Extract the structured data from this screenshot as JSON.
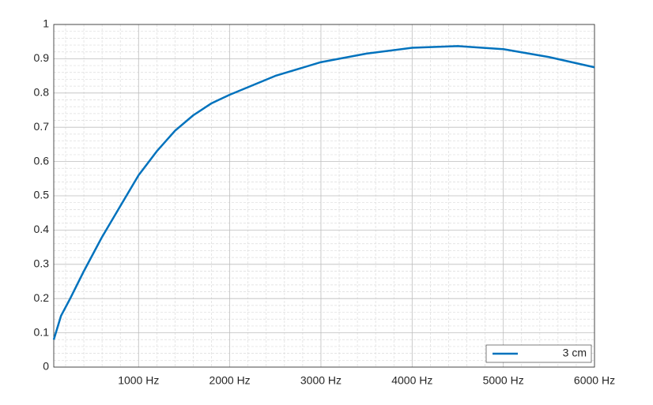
{
  "chart_data": {
    "type": "line",
    "x": [
      70,
      150,
      250,
      400,
      600,
      800,
      1000,
      1200,
      1400,
      1600,
      1800,
      2000,
      2500,
      3000,
      3500,
      4000,
      4500,
      5000,
      5500,
      6000
    ],
    "series": [
      {
        "name": "3 cm",
        "color": "#0072bd",
        "values": [
          0.08,
          0.15,
          0.2,
          0.28,
          0.38,
          0.47,
          0.56,
          0.63,
          0.69,
          0.735,
          0.77,
          0.795,
          0.85,
          0.89,
          0.915,
          0.932,
          0.937,
          0.928,
          0.905,
          0.875
        ]
      }
    ],
    "xlim": [
      70,
      6000
    ],
    "xticks": [
      {
        "value": 1000,
        "label": "1000 Hz"
      },
      {
        "value": 2000,
        "label": "2000 Hz"
      },
      {
        "value": 3000,
        "label": "3000 Hz"
      },
      {
        "value": 4000,
        "label": "4000 Hz"
      },
      {
        "value": 5000,
        "label": "5000 Hz"
      },
      {
        "value": 6000,
        "label": "6000 Hz"
      }
    ],
    "ylim": [
      0,
      1
    ],
    "yticks": [
      0,
      0.1,
      0.2,
      0.3,
      0.4,
      0.5,
      0.6,
      0.7,
      0.8,
      0.9,
      1
    ],
    "grid": true,
    "minor_grid": true,
    "legend": "lower right"
  }
}
